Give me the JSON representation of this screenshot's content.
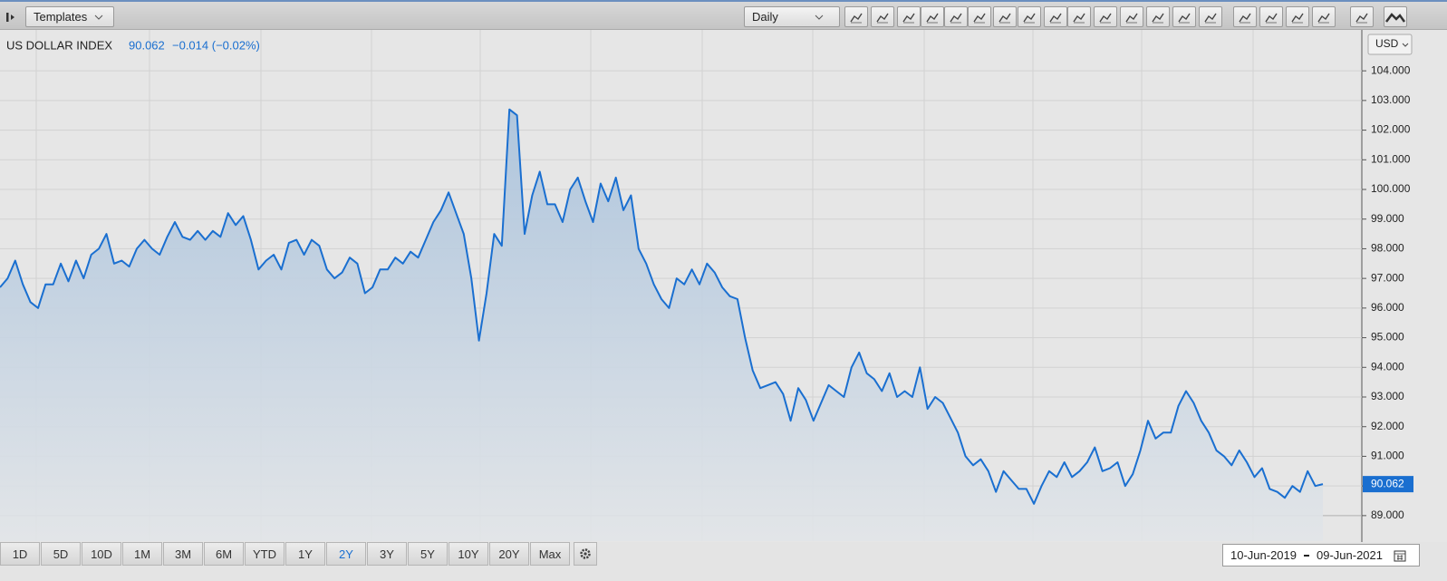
{
  "toolbar": {
    "templates": "Templates",
    "interval": "Daily"
  },
  "header": {
    "name": "US DOLLAR INDEX",
    "change": "−0.014 (−0.02%)"
  },
  "currency": "USD",
  "ranges": [
    "1D",
    "5D",
    "10D",
    "1M",
    "3M",
    "6M",
    "YTD",
    "1Y",
    "2Y",
    "3Y",
    "5Y",
    "10Y",
    "20Y",
    "Max"
  ],
  "selected_range": "2Y",
  "date_from": "10-Jun-2019",
  "date_to": "09-Jun-2021",
  "chart_data": {
    "type": "area",
    "last_price": 90.062,
    "color": "#1a6fd0",
    "ylim": [
      88.14,
      105.38
    ],
    "yticks": [
      {
        "value": 89,
        "label": "89.000"
      },
      {
        "value": 90,
        "label": "90.000"
      },
      {
        "value": 91,
        "label": "91.000"
      },
      {
        "value": 92,
        "label": "92.000"
      },
      {
        "value": 93,
        "label": "93.000"
      },
      {
        "value": 94,
        "label": "94.000"
      },
      {
        "value": 95,
        "label": "95.000"
      },
      {
        "value": 96,
        "label": "96.000"
      },
      {
        "value": 97,
        "label": "97.000"
      },
      {
        "value": 98,
        "label": "98.000"
      },
      {
        "value": 99,
        "label": "99.000"
      },
      {
        "value": 100,
        "label": "100.000"
      },
      {
        "value": 101,
        "label": "101.000"
      },
      {
        "value": 102,
        "label": "102.000"
      },
      {
        "value": 103,
        "label": "103.000"
      },
      {
        "value": 104,
        "label": "104.000"
      }
    ],
    "grid": true,
    "values": [
      96.7,
      97.0,
      97.6,
      96.8,
      96.2,
      96.0,
      96.8,
      96.8,
      97.5,
      96.9,
      97.6,
      97.0,
      97.8,
      98.0,
      98.5,
      97.5,
      97.6,
      97.4,
      98.0,
      98.3,
      98.0,
      97.8,
      98.4,
      98.9,
      98.4,
      98.3,
      98.6,
      98.3,
      98.6,
      98.4,
      99.2,
      98.8,
      99.1,
      98.3,
      97.3,
      97.6,
      97.8,
      97.3,
      98.2,
      98.3,
      97.8,
      98.3,
      98.1,
      97.3,
      97.0,
      97.2,
      97.7,
      97.5,
      96.5,
      96.7,
      97.3,
      97.3,
      97.7,
      97.5,
      97.9,
      97.7,
      98.3,
      98.9,
      99.3,
      99.9,
      99.2,
      98.5,
      97.0,
      94.9,
      96.5,
      98.5,
      98.1,
      102.7,
      102.5,
      98.5,
      99.8,
      100.6,
      99.5,
      99.5,
      98.9,
      100.0,
      100.4,
      99.6,
      98.9,
      100.2,
      99.6,
      100.4,
      99.3,
      99.8,
      98.0,
      97.5,
      96.8,
      96.3,
      96.0,
      97.0,
      96.8,
      97.3,
      96.8,
      97.5,
      97.2,
      96.7,
      96.4,
      96.3,
      95.0,
      93.9,
      93.3,
      93.4,
      93.5,
      93.1,
      92.2,
      93.3,
      92.9,
      92.2,
      92.8,
      93.4,
      93.2,
      93.0,
      94.0,
      94.5,
      93.8,
      93.6,
      93.2,
      93.8,
      93.0,
      93.2,
      93.0,
      94.0,
      92.6,
      93.0,
      92.8,
      92.3,
      91.8,
      91.0,
      90.7,
      90.9,
      90.5,
      89.8,
      90.5,
      90.2,
      89.9,
      89.9,
      89.4,
      90.0,
      90.5,
      90.3,
      90.8,
      90.3,
      90.5,
      90.8,
      91.3,
      90.5,
      90.6,
      90.8,
      90.0,
      90.4,
      91.2,
      92.2,
      91.6,
      91.8,
      91.8,
      92.7,
      93.2,
      92.8,
      92.2,
      91.8,
      91.2,
      91.0,
      90.7,
      91.2,
      90.8,
      90.3,
      90.6,
      89.9,
      89.8,
      89.6,
      90.0,
      89.8,
      90.5,
      90.0,
      90.062
    ]
  }
}
